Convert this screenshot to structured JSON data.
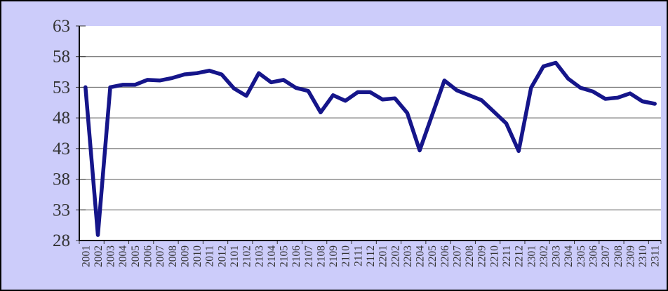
{
  "chart": {
    "title": "",
    "series_color": "#15158a",
    "background_color": "#ccccfa",
    "plot_background_color": "#ffffff",
    "gridline_color": "#595959",
    "axis_color": "#000000",
    "tick_color": "#333333",
    "label_color": "#333333"
  },
  "chart_data": {
    "type": "line",
    "title": "",
    "xlabel": "",
    "ylabel": "",
    "legend": "none",
    "grid": "horizontal",
    "ylim": [
      28,
      63
    ],
    "yticks": [
      28,
      33,
      38,
      43,
      48,
      53,
      58,
      63
    ],
    "categories": [
      "2001",
      "2002",
      "2003",
      "2004",
      "2005",
      "2006",
      "2007",
      "2008",
      "2009",
      "2010",
      "2011",
      "2012",
      "2101",
      "2102",
      "2103",
      "2104",
      "2105",
      "2106",
      "2107",
      "2108",
      "2109",
      "2110",
      "2111",
      "2112",
      "2201",
      "2202",
      "2203",
      "2204",
      "2205",
      "2206",
      "2207",
      "2208",
      "2209",
      "2210",
      "2211",
      "2212",
      "2301",
      "2302",
      "2303",
      "2304",
      "2305",
      "2306",
      "2307",
      "2308",
      "2309",
      "2310",
      "2311"
    ],
    "values": [
      53.0,
      28.9,
      53.0,
      53.4,
      53.4,
      54.2,
      54.1,
      54.5,
      55.1,
      55.3,
      55.7,
      55.1,
      52.8,
      51.6,
      55.3,
      53.8,
      54.2,
      52.9,
      52.4,
      48.9,
      51.7,
      50.8,
      52.2,
      52.2,
      51.0,
      51.2,
      48.8,
      42.7,
      48.4,
      54.1,
      52.5,
      51.7,
      50.9,
      49.0,
      47.1,
      42.6,
      52.9,
      56.4,
      57.0,
      54.4,
      52.9,
      52.3,
      51.1,
      51.3,
      52.0,
      50.7,
      50.3
    ]
  }
}
